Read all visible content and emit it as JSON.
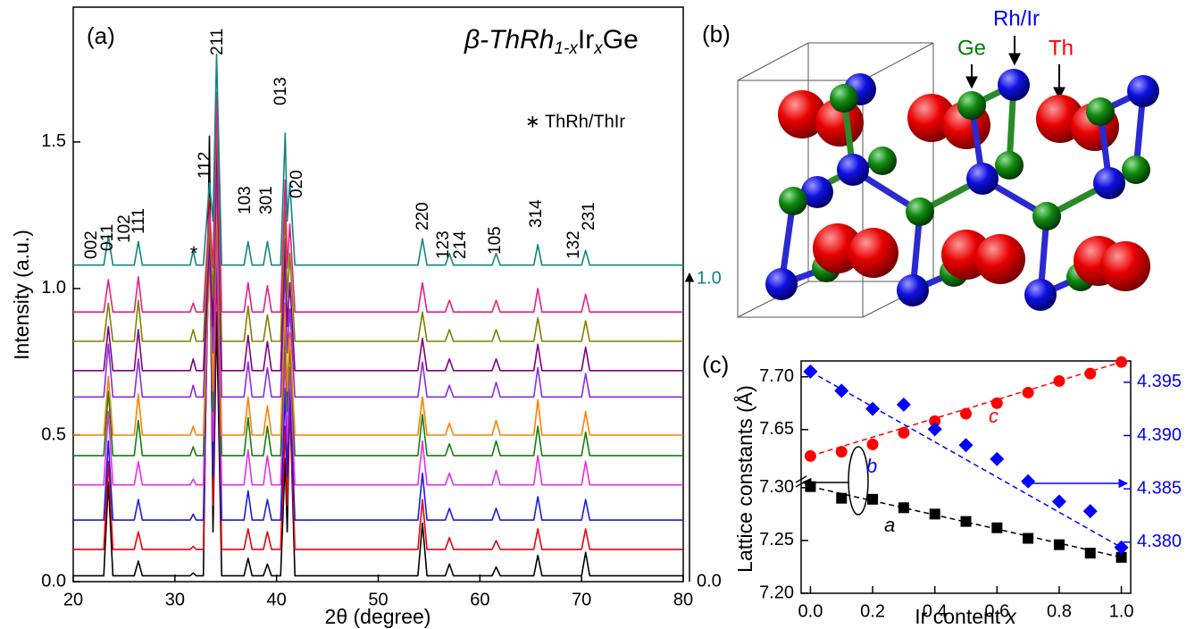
{
  "chart_data": [
    {
      "type": "line",
      "panel_label": "(a)",
      "title_parts": [
        "β-ThRh",
        "1-x",
        "Ir",
        "x",
        "Ge"
      ],
      "xlabel": "2θ (degree)",
      "ylabel": "Intensity (a.u.)",
      "note": "∗ ThRh/ThIr",
      "arrow_top": "1.0",
      "arrow_bottom": "0.0",
      "peak_labels": [
        "002",
        "011",
        "102",
        "111",
        "*",
        "112",
        "211",
        "103",
        "301",
        "013",
        "020",
        "220",
        "123",
        "214",
        "105",
        "314",
        "132",
        "231"
      ],
      "xlim": [
        20,
        80
      ],
      "ylim": [
        0,
        1.96
      ],
      "xticks": [
        20,
        30,
        40,
        50,
        60,
        70,
        80
      ],
      "yticks": [
        {
          "value": 0,
          "label": "0.0"
        },
        0.5,
        {
          "value": 1,
          "label": "1.0"
        },
        1.5
      ],
      "x": [
        20,
        23.0,
        23.45,
        23.9,
        26.0,
        26.4,
        26.8,
        31.5,
        31.8,
        32.1,
        32.8,
        33.4,
        33.75,
        34.1,
        34.6,
        36.8,
        37.2,
        37.6,
        38.7,
        39.1,
        39.5,
        40.4,
        40.85,
        41.05,
        41.3,
        41.8,
        53.9,
        54.35,
        54.8,
        56.6,
        57.0,
        57.4,
        61.2,
        61.6,
        62.0,
        65.3,
        65.7,
        66.1,
        70.0,
        70.4,
        70.8,
        80
      ],
      "series": [
        {
          "color": "#000000",
          "values": [
            0.02,
            0.02,
            0.34,
            0.02,
            0.02,
            0.07,
            0.02,
            0.02,
            0.03,
            0.02,
            0.02,
            1.52,
            0.17,
            0.92,
            0.02,
            0.02,
            0.08,
            0.02,
            0.02,
            0.06,
            0.02,
            0.02,
            0.42,
            0.17,
            0.62,
            0.02,
            0.02,
            0.2,
            0.02,
            0.02,
            0.06,
            0.02,
            0.02,
            0.05,
            0.02,
            0.02,
            0.09,
            0.02,
            0.02,
            0.1,
            0.02,
            0.02
          ]
        },
        {
          "color": "#e8000b",
          "values": [
            0.11,
            0.11,
            0.41,
            0.11,
            0.11,
            0.17,
            0.11,
            0.11,
            0.12,
            0.11,
            0.11,
            1.31,
            0.26,
            1.11,
            0.11,
            0.11,
            0.18,
            0.11,
            0.11,
            0.17,
            0.11,
            0.11,
            0.53,
            0.26,
            0.61,
            0.11,
            0.11,
            0.28,
            0.11,
            0.11,
            0.15,
            0.11,
            0.11,
            0.14,
            0.11,
            0.11,
            0.18,
            0.11,
            0.11,
            0.18,
            0.11,
            0.11
          ]
        },
        {
          "color": "#1a1ae6",
          "values": [
            0.21,
            0.21,
            0.48,
            0.21,
            0.21,
            0.28,
            0.21,
            0.21,
            0.23,
            0.21,
            0.21,
            1.21,
            0.36,
            1.21,
            0.21,
            0.21,
            0.31,
            0.21,
            0.21,
            0.28,
            0.21,
            0.21,
            0.66,
            0.36,
            0.66,
            0.21,
            0.21,
            0.37,
            0.21,
            0.21,
            0.25,
            0.21,
            0.21,
            0.25,
            0.21,
            0.21,
            0.29,
            0.21,
            0.21,
            0.28,
            0.21,
            0.21
          ]
        },
        {
          "color": "#e62ee6",
          "values": [
            0.33,
            0.33,
            0.58,
            0.33,
            0.33,
            0.41,
            0.33,
            0.33,
            0.35,
            0.33,
            0.33,
            1.23,
            0.48,
            1.23,
            0.33,
            0.33,
            0.45,
            0.33,
            0.33,
            0.43,
            0.33,
            0.33,
            0.78,
            0.48,
            0.73,
            0.33,
            0.33,
            0.48,
            0.33,
            0.33,
            0.37,
            0.33,
            0.33,
            0.38,
            0.33,
            0.33,
            0.43,
            0.33,
            0.33,
            0.41,
            0.33,
            0.33
          ]
        },
        {
          "color": "#108010",
          "values": [
            0.43,
            0.43,
            0.65,
            0.43,
            0.43,
            0.55,
            0.43,
            0.43,
            0.46,
            0.43,
            0.43,
            1.13,
            0.58,
            1.33,
            0.43,
            0.43,
            0.56,
            0.43,
            0.43,
            0.53,
            0.43,
            0.43,
            0.88,
            0.58,
            0.81,
            0.43,
            0.43,
            0.57,
            0.43,
            0.43,
            0.47,
            0.43,
            0.43,
            0.48,
            0.43,
            0.43,
            0.53,
            0.43,
            0.43,
            0.51,
            0.43,
            0.43
          ]
        },
        {
          "color": "#ff8000",
          "values": [
            0.5,
            0.5,
            0.7,
            0.5,
            0.5,
            0.64,
            0.5,
            0.5,
            0.53,
            0.5,
            0.5,
            1.1,
            0.65,
            1.35,
            0.5,
            0.5,
            0.63,
            0.5,
            0.5,
            0.6,
            0.5,
            0.5,
            0.95,
            0.65,
            0.85,
            0.5,
            0.5,
            0.63,
            0.5,
            0.5,
            0.54,
            0.5,
            0.5,
            0.55,
            0.5,
            0.5,
            0.62,
            0.5,
            0.5,
            0.58,
            0.5,
            0.5
          ]
        },
        {
          "color": "#8a2be2",
          "values": [
            0.63,
            0.63,
            0.81,
            0.63,
            0.63,
            0.76,
            0.63,
            0.63,
            0.67,
            0.63,
            0.63,
            1.13,
            0.78,
            1.43,
            0.63,
            0.63,
            0.75,
            0.63,
            0.63,
            0.73,
            0.63,
            0.63,
            1.08,
            0.78,
            0.93,
            0.63,
            0.63,
            0.75,
            0.63,
            0.63,
            0.67,
            0.63,
            0.63,
            0.68,
            0.63,
            0.63,
            0.73,
            0.63,
            0.63,
            0.71,
            0.63,
            0.63
          ]
        },
        {
          "color": "#800080",
          "values": [
            0.72,
            0.72,
            0.87,
            0.72,
            0.72,
            0.86,
            0.72,
            0.72,
            0.76,
            0.72,
            0.72,
            1.17,
            0.87,
            1.52,
            0.72,
            0.72,
            0.84,
            0.72,
            0.72,
            0.82,
            0.72,
            0.72,
            1.17,
            0.87,
            1.02,
            0.72,
            0.72,
            0.83,
            0.72,
            0.72,
            0.76,
            0.72,
            0.72,
            0.76,
            0.72,
            0.72,
            0.81,
            0.72,
            0.72,
            0.8,
            0.72,
            0.72
          ]
        },
        {
          "color": "#808000",
          "values": [
            0.82,
            0.82,
            0.95,
            0.82,
            0.82,
            0.96,
            0.82,
            0.82,
            0.86,
            0.82,
            0.82,
            1.22,
            0.97,
            1.62,
            0.82,
            0.82,
            0.94,
            0.82,
            0.82,
            0.91,
            0.82,
            0.82,
            1.27,
            0.97,
            1.12,
            0.82,
            0.82,
            0.92,
            0.82,
            0.82,
            0.86,
            0.82,
            0.82,
            0.86,
            0.82,
            0.82,
            0.9,
            0.82,
            0.82,
            0.89,
            0.82,
            0.82
          ]
        },
        {
          "color": "#e6207f",
          "values": [
            0.92,
            0.92,
            1.03,
            0.92,
            0.92,
            1.04,
            0.92,
            0.92,
            0.95,
            0.92,
            0.92,
            1.27,
            1.07,
            1.67,
            0.92,
            0.92,
            1.02,
            0.92,
            0.92,
            1.01,
            0.92,
            0.92,
            1.37,
            1.07,
            1.22,
            0.92,
            0.92,
            1.02,
            0.92,
            0.92,
            0.96,
            0.92,
            0.92,
            0.96,
            0.92,
            0.92,
            1,
            0.92,
            0.92,
            0.98,
            0.92,
            0.92
          ]
        },
        {
          "color": "#138484",
          "values": [
            1.08,
            1.08,
            1.18,
            1.08,
            1.08,
            1.16,
            1.08,
            1.08,
            1.13,
            1.08,
            1.08,
            1.36,
            1.23,
            1.8,
            1.08,
            1.08,
            1.16,
            1.08,
            1.08,
            1.16,
            1.08,
            1.08,
            1.53,
            1.23,
            1.36,
            1.08,
            1.08,
            1.17,
            1.08,
            1.08,
            1.12,
            1.08,
            1.08,
            1.12,
            1.08,
            1.08,
            1.15,
            1.08,
            1.08,
            1.13,
            1.08,
            1.08
          ]
        }
      ]
    },
    {
      "type": "scatter",
      "panel_label": "(c)",
      "xlabel_parts": [
        "Ir content",
        "x"
      ],
      "ylabel": "Lattice constants (Å)",
      "xlim": [
        -0.03,
        1.03
      ],
      "ylim": [
        7.2,
        7.715
      ],
      "ybreak": [
        7.31,
        7.605
      ],
      "y2lim": [
        4.3752,
        4.397
      ],
      "xticks": [
        {
          "value": 0,
          "label": "0.0"
        },
        0.2,
        0.4,
        0.6,
        0.8,
        {
          "value": 1,
          "label": "1.0"
        }
      ],
      "yticks": [
        {
          "value": 7.2,
          "label": "7.20"
        },
        7.25,
        {
          "value": 7.3,
          "label": "7.30"
        },
        7.65,
        {
          "value": 7.7,
          "label": "7.70"
        }
      ],
      "y2ticks": [
        {
          "value": 4.38,
          "label": "4.380"
        },
        4.385,
        {
          "value": 4.39,
          "label": "4.390"
        },
        4.395
      ],
      "x": [
        0,
        0.1,
        0.2,
        0.3,
        0.4,
        0.5,
        0.6,
        0.7,
        0.8,
        0.9,
        1
      ],
      "series": [
        {
          "name": "c",
          "color": "#ff0000",
          "marker": "circle",
          "values": [
            7.625,
            7.629,
            7.636,
            7.647,
            7.658,
            7.665,
            7.675,
            7.685,
            7.696,
            7.703,
            7.714
          ]
        },
        {
          "name": "a",
          "color": "#000000",
          "marker": "square",
          "values": [
            7.301,
            7.29,
            7.289,
            7.281,
            7.275,
            7.268,
            7.262,
            7.252,
            7.246,
            7.238,
            7.234
          ]
        },
        {
          "name": "b",
          "color": "#0000ff",
          "marker": "diamond",
          "axis": "y2",
          "values": [
            4.396,
            4.3942,
            4.3925,
            4.3929,
            4.3906,
            4.3891,
            4.3878,
            4.3857,
            4.3838,
            4.3829,
            4.3795
          ]
        }
      ]
    }
  ],
  "structure": {
    "panel_label": "(b)",
    "atoms": [
      {
        "label": "Ge",
        "color": "#008000"
      },
      {
        "label": "Rh/Ir",
        "color": "#0000ff"
      },
      {
        "label": "Th",
        "color": "#ff0000"
      }
    ]
  }
}
